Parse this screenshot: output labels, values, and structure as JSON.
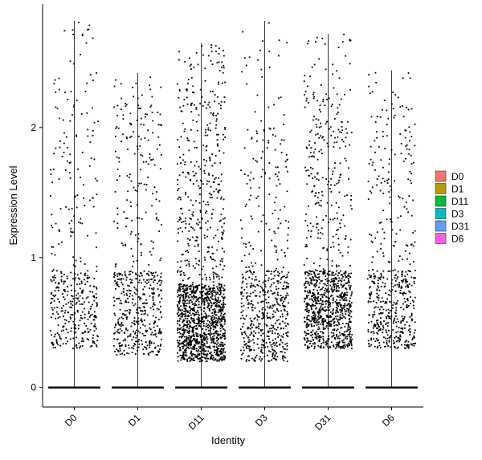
{
  "chart_data": {
    "type": "scatter",
    "subtype": "violin-jitter",
    "title": "",
    "xlabel": "Identity",
    "ylabel": "Expression Level",
    "categories": [
      "D0",
      "D1",
      "D11",
      "D3",
      "D31",
      "D6"
    ],
    "ylim": [
      -0.15,
      2.95
    ],
    "yticks": [
      0,
      1,
      2
    ],
    "grid": false,
    "point_color": "#000000",
    "legend": {
      "placement": "right",
      "entries": [
        {
          "label": "D0",
          "color": "#F8766D"
        },
        {
          "label": "D1",
          "color": "#B79F00"
        },
        {
          "label": "D11",
          "color": "#00BA38"
        },
        {
          "label": "D3",
          "color": "#00BFC4"
        },
        {
          "label": "D31",
          "color": "#619CFF"
        },
        {
          "label": "D6",
          "color": "#F564E3"
        }
      ]
    },
    "series": [
      {
        "category": "D0",
        "max": 2.82,
        "n_nonzero": 420,
        "dense_low": 0.3,
        "dense_high": 0.9,
        "spread_high": 2.5
      },
      {
        "category": "D1",
        "max": 2.42,
        "n_nonzero": 560,
        "dense_low": 0.25,
        "dense_high": 0.9,
        "spread_high": 2.2
      },
      {
        "category": "D11",
        "max": 2.65,
        "n_nonzero": 1500,
        "dense_low": 0.2,
        "dense_high": 0.8,
        "spread_high": 2.3
      },
      {
        "category": "D3",
        "max": 2.82,
        "n_nonzero": 600,
        "dense_low": 0.2,
        "dense_high": 0.9,
        "spread_high": 2.0
      },
      {
        "category": "D31",
        "max": 2.72,
        "n_nonzero": 1050,
        "dense_low": 0.3,
        "dense_high": 0.9,
        "spread_high": 2.3
      },
      {
        "category": "D6",
        "max": 2.44,
        "n_nonzero": 560,
        "dense_low": 0.3,
        "dense_high": 0.9,
        "spread_high": 2.1
      }
    ]
  }
}
